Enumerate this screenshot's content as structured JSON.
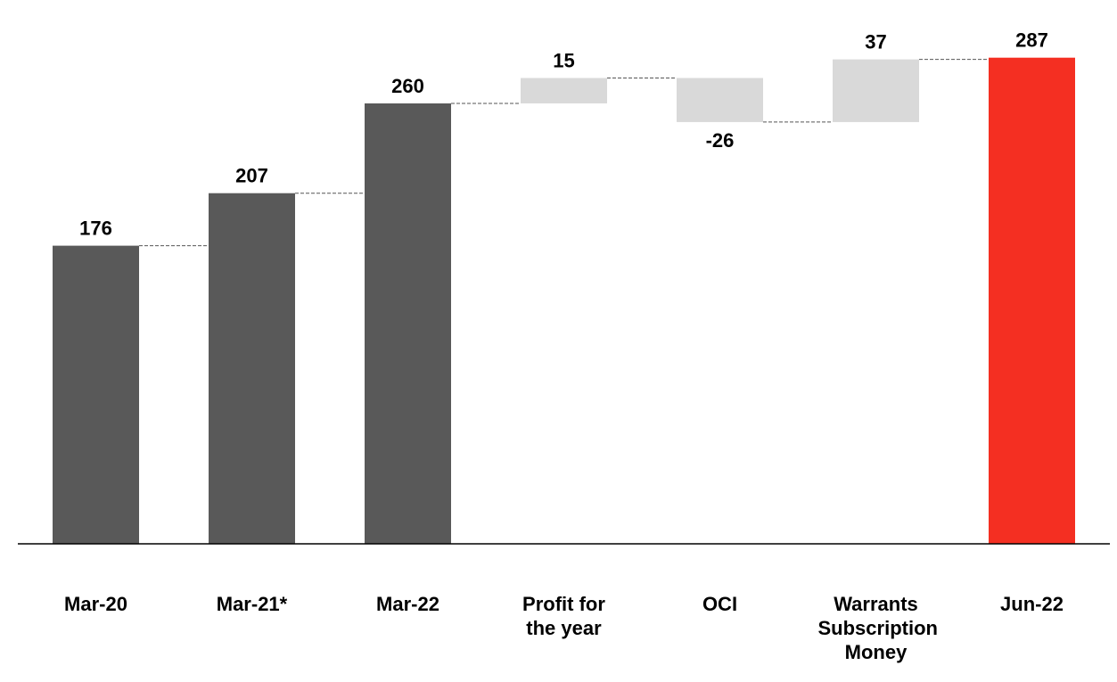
{
  "chart_data": {
    "type": "waterfall",
    "categories": [
      "Mar-20",
      "Mar-21*",
      "Mar-22",
      "Profit for the year",
      "OCI",
      "Warrants Subscription Money",
      "Jun-22"
    ],
    "values": [
      176,
      207,
      260,
      15,
      -26,
      37,
      287
    ],
    "measures": [
      "total",
      "total",
      "total",
      "relative",
      "relative",
      "relative",
      "total"
    ],
    "colors": [
      "#595959",
      "#595959",
      "#595959",
      "#d9d9d9",
      "#d9d9d9",
      "#d9d9d9",
      "#f42f22"
    ],
    "ylim": [
      0,
      300
    ]
  }
}
